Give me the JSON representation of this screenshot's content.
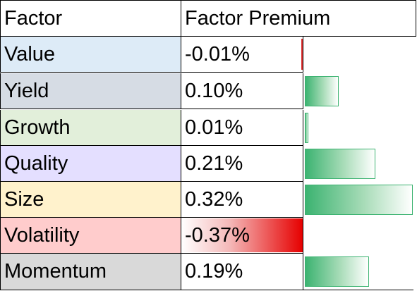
{
  "header": {
    "factor": "Factor",
    "premium": "Factor Premium"
  },
  "rows": [
    {
      "factor": "Value",
      "premium": "-0.01%",
      "value": -0.01,
      "color": "#ddebf7"
    },
    {
      "factor": "Yield",
      "premium": "0.10%",
      "value": 0.1,
      "color": "#d6dce4"
    },
    {
      "factor": "Growth",
      "premium": "0.01%",
      "value": 0.01,
      "color": "#e2efda"
    },
    {
      "factor": "Quality",
      "premium": "0.21%",
      "value": 0.21,
      "color": "#e4dfff"
    },
    {
      "factor": "Size",
      "premium": "0.32%",
      "value": 0.32,
      "color": "#fff2cc"
    },
    {
      "factor": "Volatility",
      "premium": "-0.37%",
      "value": -0.37,
      "color": "#ffcccc"
    },
    {
      "factor": "Momentum",
      "premium": "0.19%",
      "value": 0.19,
      "color": "#d9d9d9"
    }
  ],
  "colors": {
    "negative_bar": "#e60000",
    "positive_bar": "#3cb371"
  }
}
